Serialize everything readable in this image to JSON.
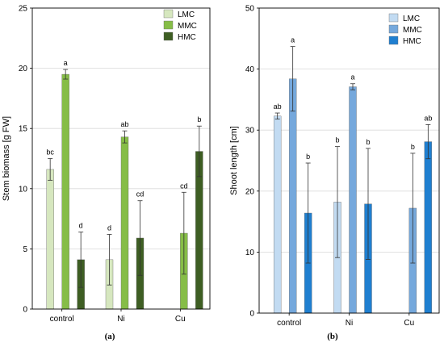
{
  "chart_data": [
    {
      "type": "bar",
      "panel_label": "(a)",
      "ylabel": "Stem biomass [g FW]",
      "xlabel": "",
      "ylim": [
        0,
        25
      ],
      "yticks": [
        0,
        5,
        10,
        15,
        20,
        25
      ],
      "categories": [
        "control",
        "Ni",
        "Cu"
      ],
      "grid": "horizontal",
      "legend_position": "top-right",
      "series": [
        {
          "name": "LMC",
          "color": "#d6e7bf",
          "values": [
            11.6,
            4.1,
            null
          ],
          "errors": [
            0.9,
            2.1,
            null
          ],
          "labels": [
            "bc",
            "d",
            ""
          ]
        },
        {
          "name": "MMC",
          "color": "#86bd47",
          "values": [
            19.5,
            14.3,
            6.3
          ],
          "errors": [
            0.4,
            0.5,
            3.4
          ],
          "labels": [
            "a",
            "ab",
            "cd"
          ]
        },
        {
          "name": "HMC",
          "color": "#3e5e23",
          "values": [
            4.1,
            5.9,
            13.1
          ],
          "errors": [
            2.3,
            3.1,
            2.1
          ],
          "labels": [
            "d",
            "cd",
            "b"
          ]
        }
      ]
    },
    {
      "type": "bar",
      "panel_label": "(b)",
      "ylabel": "Shoot length [cm]",
      "xlabel": "",
      "ylim": [
        0,
        50
      ],
      "yticks": [
        0,
        10,
        20,
        30,
        40,
        50
      ],
      "categories": [
        "control",
        "Ni",
        "Cu"
      ],
      "grid": "horizontal",
      "legend_position": "top-right",
      "series": [
        {
          "name": "LMC",
          "color": "#c2dbf2",
          "values": [
            32.3,
            18.2,
            null
          ],
          "errors": [
            0.5,
            9.1,
            null
          ],
          "labels": [
            "ab",
            "b",
            ""
          ]
        },
        {
          "name": "MMC",
          "color": "#75a8dc",
          "values": [
            38.4,
            37.1,
            17.2
          ],
          "errors": [
            5.3,
            0.5,
            9.0
          ],
          "labels": [
            "a",
            "a",
            "b"
          ]
        },
        {
          "name": "HMC",
          "color": "#1f7fd0",
          "values": [
            16.4,
            17.9,
            28.1
          ],
          "errors": [
            8.2,
            9.1,
            2.8
          ],
          "labels": [
            "b",
            "b",
            "ab"
          ]
        }
      ]
    }
  ]
}
